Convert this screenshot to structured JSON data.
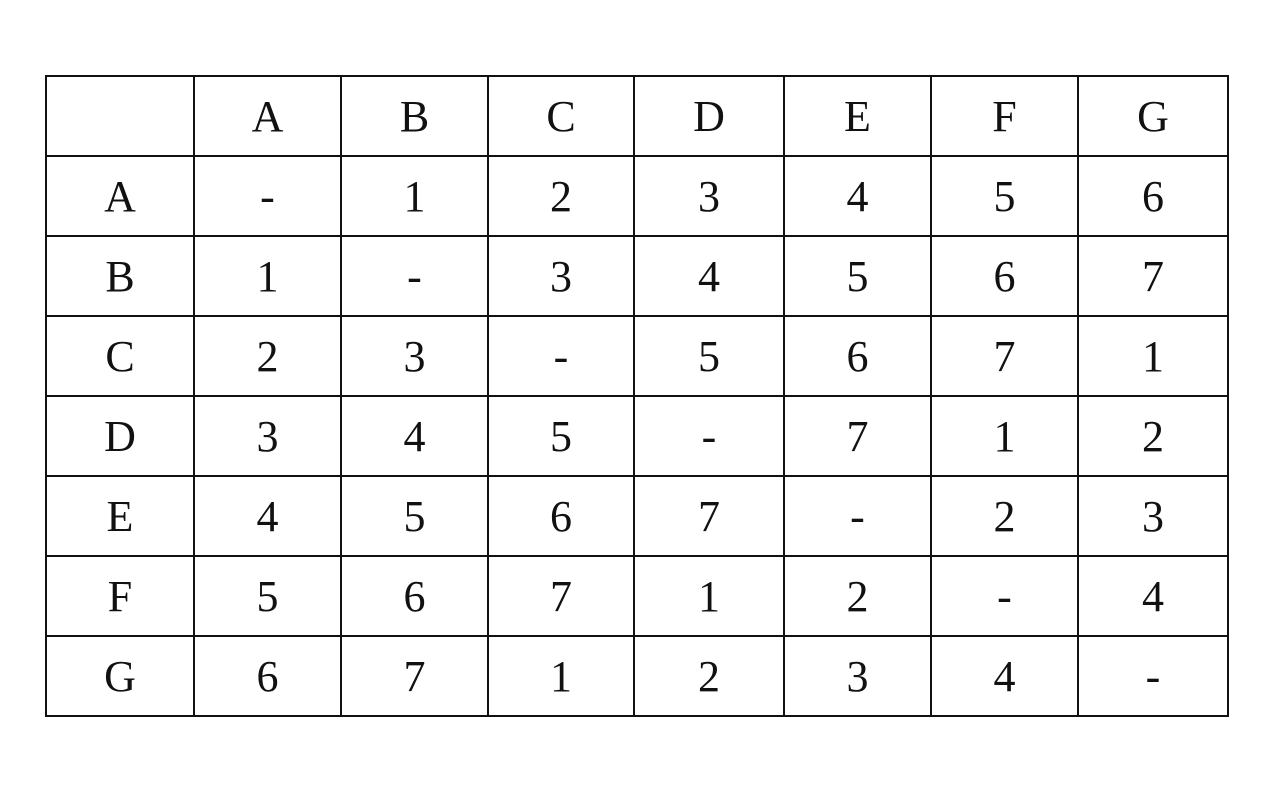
{
  "table": {
    "headers": [
      "",
      "A",
      "B",
      "C",
      "D",
      "E",
      "F",
      "G"
    ],
    "rows": [
      [
        "A",
        "-",
        "1",
        "2",
        "3",
        "4",
        "5",
        "6"
      ],
      [
        "B",
        "1",
        "-",
        "3",
        "4",
        "5",
        "6",
        "7"
      ],
      [
        "C",
        "2",
        "3",
        "-",
        "5",
        "6",
        "7",
        "1"
      ],
      [
        "D",
        "3",
        "4",
        "5",
        "-",
        "7",
        "1",
        "2"
      ],
      [
        "E",
        "4",
        "5",
        "6",
        "7",
        "-",
        "2",
        "3"
      ],
      [
        "F",
        "5",
        "6",
        "7",
        "1",
        "2",
        "-",
        "4"
      ],
      [
        "G",
        "6",
        "7",
        "1",
        "2",
        "3",
        "4",
        "-"
      ]
    ]
  }
}
